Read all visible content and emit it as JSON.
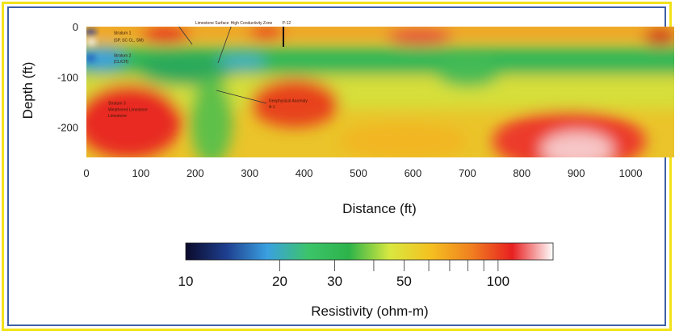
{
  "chart_data": {
    "type": "heatmap",
    "title": "",
    "xlabel": "Distance (ft)",
    "ylabel": "Depth (ft)",
    "xlim": [
      0,
      1080
    ],
    "ylim": [
      0,
      -260
    ],
    "x_ticks": [
      "0",
      "100",
      "200",
      "300",
      "400",
      "500",
      "600",
      "700",
      "800",
      "900",
      "1000"
    ],
    "y_ticks": [
      "0",
      "-100",
      "-200"
    ],
    "annotations": [
      {
        "text": "Limestone Surface",
        "x": 200,
        "y": 5
      },
      {
        "text": "High Conductivity Zone",
        "x": 265,
        "y": 5
      },
      {
        "text": "P-12",
        "x": 360,
        "y": 5
      },
      {
        "text": "Stratum 1",
        "x": 50,
        "y": -15
      },
      {
        "text": "(SP, SC CL, SM)",
        "x": 50,
        "y": -30
      },
      {
        "text": "Stratum 2",
        "x": 50,
        "y": -60
      },
      {
        "text": "(CL/CH)",
        "x": 50,
        "y": -72
      },
      {
        "text": "Stratum 3",
        "x": 40,
        "y": -155
      },
      {
        "text": "Weathered Limestone",
        "x": 40,
        "y": -168
      },
      {
        "text": "Limestone",
        "x": 40,
        "y": -180
      },
      {
        "text": "Geophysical Anomaly",
        "x": 335,
        "y": -150
      },
      {
        "text": "A-1",
        "x": 335,
        "y": -162
      }
    ],
    "colorbar": {
      "title": "Resistivity (ohm-m)",
      "scale": "log",
      "range": [
        10,
        150
      ],
      "tick_labels": [
        "10",
        "20",
        "30",
        "50",
        "100"
      ],
      "colors": [
        "#0a0a2a",
        "#1e3f8f",
        "#3aa0e0",
        "#3cc46a",
        "#2db34a",
        "#d9e840",
        "#f4c020",
        "#f08020",
        "#e82020",
        "#ffffff"
      ]
    },
    "features": [
      {
        "name": "near-surface band",
        "type": "layer",
        "depth_range": [
          0,
          -40
        ],
        "dominant_color": "#f0a020"
      },
      {
        "name": "conductive layer",
        "type": "layer",
        "depth_range": [
          -40,
          -100
        ],
        "dominant_color": "#2db34a"
      },
      {
        "name": "high resistivity body",
        "type": "body",
        "x": 60,
        "y": -160,
        "dominant_color": "#e82020"
      },
      {
        "name": "anomaly A-1",
        "type": "body",
        "x": 360,
        "y": -150,
        "dominant_color": "#e83018"
      },
      {
        "name": "high resistivity body east",
        "type": "body",
        "x": 900,
        "y": -220,
        "dominant_color": "#f8c8c8"
      }
    ]
  }
}
